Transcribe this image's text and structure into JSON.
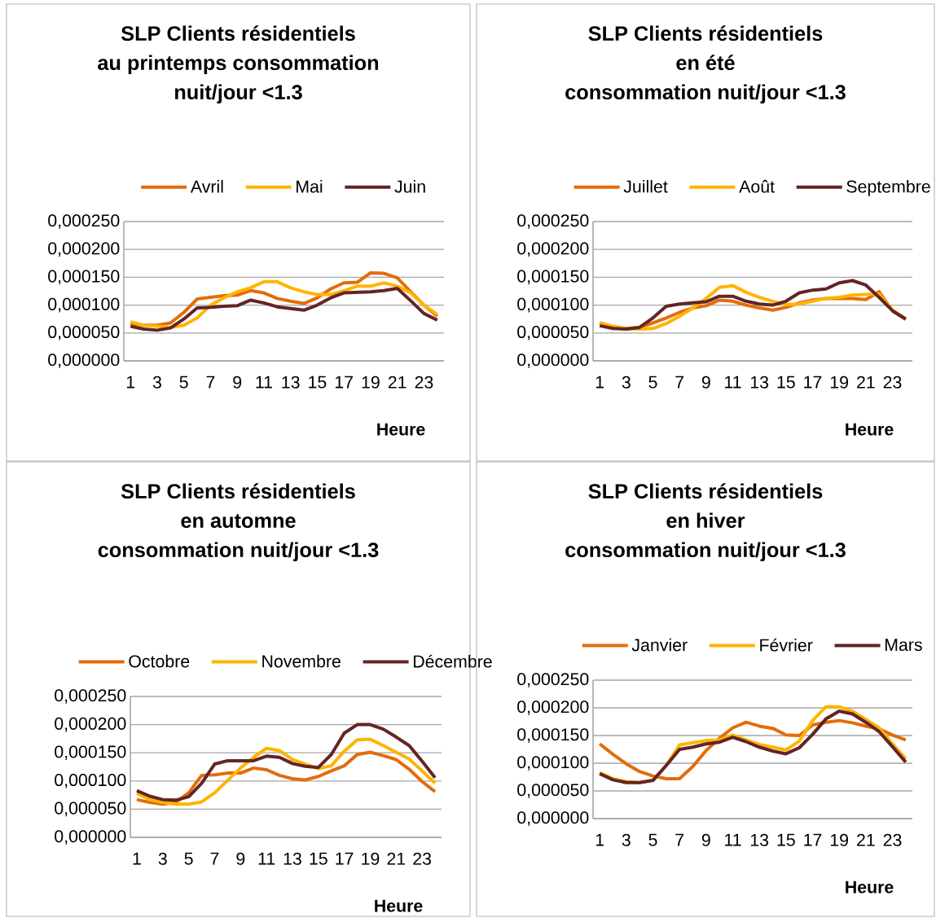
{
  "chart_data": [
    {
      "type": "line",
      "title": "SLP Clients résidentiels\nau printemps consommation\nnuit/jour <1.3",
      "xlabel": "Heure",
      "categories": [
        "1",
        null,
        "3",
        null,
        "5",
        null,
        "7",
        null,
        "9",
        null,
        "11",
        null,
        "13",
        null,
        "15",
        null,
        "17",
        null,
        "19",
        null,
        "21",
        null,
        "23",
        null
      ],
      "series": [
        {
          "name": "Avril",
          "color": "#e46c0a",
          "values": [
            6.7e-05,
            6.4e-05,
            6.4e-05,
            6.8e-05,
            8.7e-05,
            0.000111,
            0.000114,
            0.000117,
            0.000118,
            0.000126,
            0.000122,
            0.000112,
            0.000107,
            0.000103,
            0.000113,
            0.000129,
            0.00014,
            0.000141,
            0.000158,
            0.000157,
            0.000149,
            0.000124,
            0.0001,
            8e-05
          ]
        },
        {
          "name": "Mai",
          "color": "#ffb400",
          "values": [
            7e-05,
            6.4e-05,
            6.2e-05,
            6e-05,
            6.4e-05,
            7.7e-05,
            0.0001,
            0.000113,
            0.000124,
            0.000131,
            0.000142,
            0.000142,
            0.000131,
            0.000124,
            0.000119,
            0.000119,
            0.000126,
            0.000134,
            0.000134,
            0.00014,
            0.000134,
            0.000122,
            0.0001,
            8.3e-05
          ]
        },
        {
          "name": "Juin",
          "color": "#632523",
          "values": [
            6.2e-05,
            5.7e-05,
            5.5e-05,
            5.9e-05,
            7.5e-05,
            9.5e-05,
            9.6e-05,
            9.8e-05,
            9.9e-05,
            0.000109,
            0.000104,
            9.7e-05,
            9.4e-05,
            9.1e-05,
            0.0001,
            0.000113,
            0.000122,
            0.000123,
            0.000124,
            0.000126,
            0.00013,
            0.000108,
            8.5e-05,
            7.3e-05
          ]
        }
      ],
      "ylim": [
        0,
        0.00025
      ],
      "yticks": [
        {
          "value": 0,
          "label": "0,000000"
        },
        {
          "value": 5e-05,
          "label": "0,000050"
        },
        {
          "value": 0.0001,
          "label": "0,000100"
        },
        {
          "value": 0.00015,
          "label": "0,000150"
        },
        {
          "value": 0.0002,
          "label": "0,000200"
        },
        {
          "value": 0.00025,
          "label": "0,000250"
        }
      ],
      "grid": "y",
      "legend": "top",
      "marker": "none",
      "line_style": "solid"
    },
    {
      "type": "line",
      "title": "SLP Clients résidentiels\nen été\nconsommation nuit/jour <1.3",
      "xlabel": "Heure",
      "categories": [
        "1",
        null,
        "3",
        null,
        "5",
        null,
        "7",
        null,
        "9",
        null,
        "11",
        null,
        "13",
        null,
        "15",
        null,
        "17",
        null,
        "19",
        null,
        "21",
        null,
        "23",
        null
      ],
      "series": [
        {
          "name": "Juillet",
          "color": "#e46c0a",
          "values": [
            6.8e-05,
            6e-05,
            5.8e-05,
            6e-05,
            6.8e-05,
            7.7e-05,
            8.7e-05,
            9.5e-05,
            9.9e-05,
            0.000109,
            0.000107,
            0.0001,
            9.5e-05,
            9.1e-05,
            9.6e-05,
            0.000104,
            0.000109,
            0.000112,
            0.000112,
            0.000112,
            0.00011,
            0.000124,
            9e-05,
            7.5e-05
          ]
        },
        {
          "name": "Août",
          "color": "#ffb400",
          "values": [
            6.8e-05,
            6.2e-05,
            5.8e-05,
            5.7e-05,
            5.8e-05,
            6.7e-05,
            8e-05,
            9.5e-05,
            0.000112,
            0.000132,
            0.000135,
            0.000123,
            0.000114,
            0.000107,
            0.000101,
            0.000102,
            0.000107,
            0.000112,
            0.000114,
            0.000118,
            0.000119,
            0.00012,
            9.1e-05,
            7.5e-05
          ]
        },
        {
          "name": "Septembre",
          "color": "#632523",
          "values": [
            6.3e-05,
            5.8e-05,
            5.7e-05,
            6e-05,
            7.7e-05,
            9.8e-05,
            0.000102,
            0.000104,
            0.000106,
            0.000116,
            0.000116,
            0.000107,
            0.000102,
            0.0001,
            0.000107,
            0.000122,
            0.000127,
            0.000129,
            0.00014,
            0.000144,
            0.000136,
            0.000114,
            9e-05,
            7.5e-05
          ]
        }
      ],
      "ylim": [
        0,
        0.00025
      ],
      "yticks": [
        {
          "value": 0,
          "label": "0,000000"
        },
        {
          "value": 5e-05,
          "label": "0,000050"
        },
        {
          "value": 0.0001,
          "label": "0,000100"
        },
        {
          "value": 0.00015,
          "label": "0,000150"
        },
        {
          "value": 0.0002,
          "label": "0,000200"
        },
        {
          "value": 0.00025,
          "label": "0,000250"
        }
      ],
      "grid": "y",
      "legend": "top",
      "marker": "none",
      "line_style": "solid"
    },
    {
      "type": "line",
      "title": "SLP Clients résidentiels\nen automne\nconsommation nuit/jour <1.3",
      "xlabel": "Heure",
      "categories": [
        "1",
        null,
        "3",
        null,
        "5",
        null,
        "7",
        null,
        "9",
        null,
        "11",
        null,
        "13",
        null,
        "15",
        null,
        "17",
        null,
        "19",
        null,
        "21",
        null,
        "23",
        null
      ],
      "series": [
        {
          "name": "Octobre",
          "color": "#e46c0a",
          "values": [
            6.7e-05,
            6.2e-05,
            5.9e-05,
            6.2e-05,
            7.9e-05,
            0.00011,
            0.000111,
            0.000114,
            0.000114,
            0.000123,
            0.00012,
            0.00011,
            0.000104,
            0.000102,
            0.000108,
            0.000118,
            0.000127,
            0.000147,
            0.000151,
            0.000145,
            0.000138,
            0.000121,
            9.9e-05,
            8.1e-05
          ]
        },
        {
          "name": "Novembre",
          "color": "#ffb400",
          "values": [
            7.8e-05,
            6.7e-05,
            6.2e-05,
            5.9e-05,
            5.9e-05,
            6.3e-05,
            7.9e-05,
            0.000101,
            0.000123,
            0.000142,
            0.000158,
            0.000154,
            0.000138,
            0.00013,
            0.000122,
            0.000127,
            0.000153,
            0.000173,
            0.000174,
            0.000163,
            0.000151,
            0.000139,
            0.000118,
            9.6e-05
          ]
        },
        {
          "name": "Décembre",
          "color": "#632523",
          "values": [
            8.3e-05,
            7.3e-05,
            6.7e-05,
            6.6e-05,
            7.2e-05,
            9.6e-05,
            0.00013,
            0.000136,
            0.000136,
            0.000136,
            0.000144,
            0.000142,
            0.000131,
            0.000126,
            0.000124,
            0.000147,
            0.000185,
            0.0002,
            0.0002,
            0.000192,
            0.000178,
            0.000163,
            0.000135,
            0.000106
          ]
        }
      ],
      "ylim": [
        0,
        0.00025
      ],
      "yticks": [
        {
          "value": 0,
          "label": "0,000000"
        },
        {
          "value": 5e-05,
          "label": "0,000050"
        },
        {
          "value": 0.0001,
          "label": "0,000100"
        },
        {
          "value": 0.00015,
          "label": "0,000150"
        },
        {
          "value": 0.0002,
          "label": "0,000200"
        },
        {
          "value": 0.00025,
          "label": "0,000250"
        }
      ],
      "grid": "y",
      "legend": "top",
      "marker": "none",
      "line_style": "solid"
    },
    {
      "type": "line",
      "title": "SLP Clients résidentiels\nen hiver\nconsommation nuit/jour <1.3",
      "xlabel": "Heure",
      "categories": [
        "1",
        null,
        "3",
        null,
        "5",
        null,
        "7",
        null,
        "9",
        null,
        "11",
        null,
        "13",
        null,
        "15",
        null,
        "17",
        null,
        "19",
        null,
        "21",
        null,
        "23",
        null
      ],
      "series": [
        {
          "name": "Janvier",
          "color": "#e46c0a",
          "values": [
            0.000135,
            0.000116,
            9.9e-05,
            8.5e-05,
            7.7e-05,
            7.2e-05,
            7.2e-05,
            9.4e-05,
            0.000123,
            0.000145,
            0.000164,
            0.000174,
            0.000167,
            0.000163,
            0.000151,
            0.00015,
            0.000169,
            0.000174,
            0.000177,
            0.000173,
            0.000167,
            0.000162,
            0.000151,
            0.000142
          ]
        },
        {
          "name": "Février",
          "color": "#ffb400",
          "values": [
            8.3e-05,
            7.2e-05,
            6.7e-05,
            6.5e-05,
            6.9e-05,
            9.6e-05,
            0.000133,
            0.000137,
            0.000141,
            0.000142,
            0.000151,
            0.000142,
            0.000134,
            0.000129,
            0.000124,
            0.00014,
            0.000177,
            0.000202,
            0.000202,
            0.000194,
            0.000179,
            0.000164,
            0.000135,
            0.000108
          ]
        },
        {
          "name": "Mars",
          "color": "#632523",
          "values": [
            8.1e-05,
            7e-05,
            6.5e-05,
            6.5e-05,
            6.9e-05,
            9.6e-05,
            0.000125,
            0.000129,
            0.000135,
            0.000138,
            0.000147,
            0.000139,
            0.000129,
            0.000122,
            0.000117,
            0.000128,
            0.000152,
            0.00018,
            0.000194,
            0.000189,
            0.000174,
            0.000157,
            0.00013,
            0.000102
          ]
        }
      ],
      "ylim": [
        0,
        0.00025
      ],
      "yticks": [
        {
          "value": 0,
          "label": "0,000000"
        },
        {
          "value": 5e-05,
          "label": "0,000050"
        },
        {
          "value": 0.0001,
          "label": "0,000100"
        },
        {
          "value": 0.00015,
          "label": "0,000150"
        },
        {
          "value": 0.0002,
          "label": "0,000200"
        },
        {
          "value": 0.00025,
          "label": "0,000250"
        }
      ],
      "grid": "y",
      "legend": "top",
      "marker": "none",
      "line_style": "solid"
    }
  ]
}
